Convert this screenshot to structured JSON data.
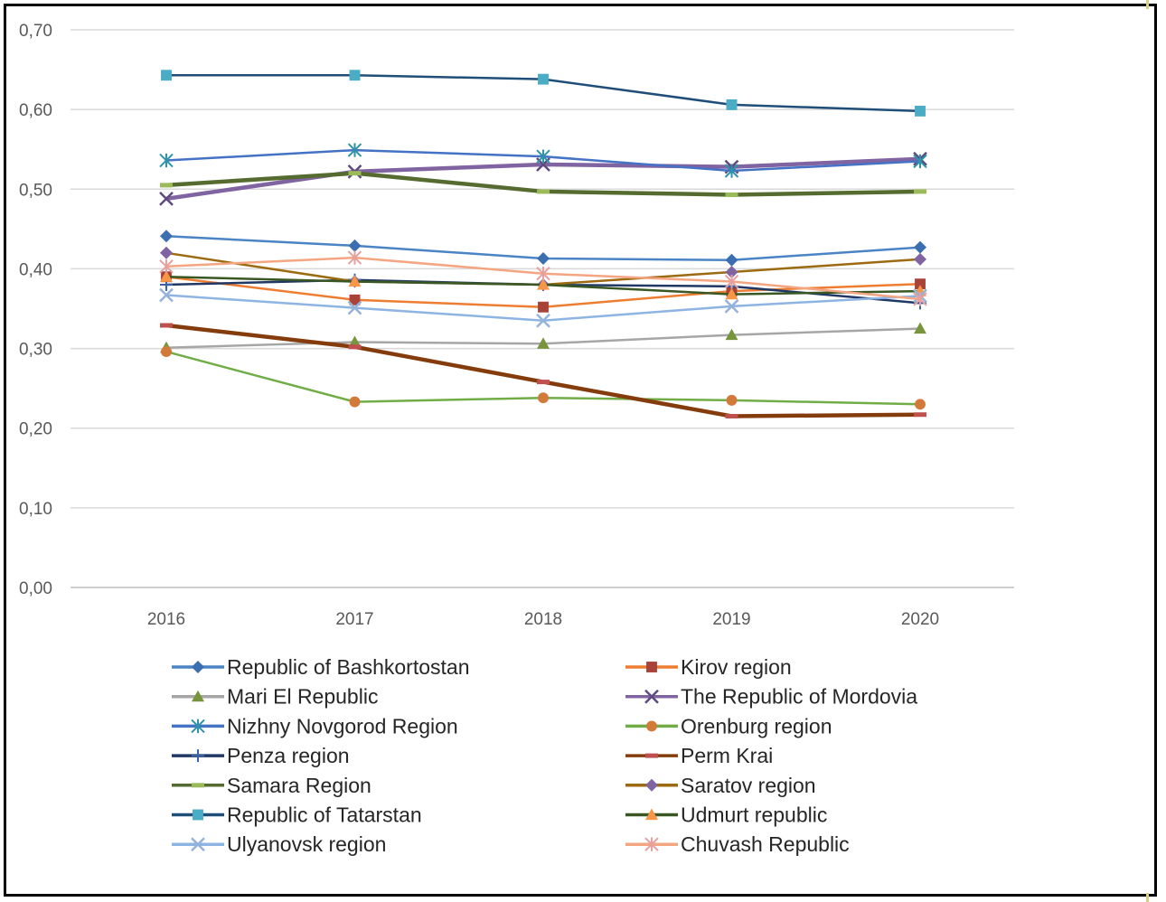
{
  "chart_data": {
    "type": "line",
    "title": "",
    "xlabel": "",
    "ylabel": "",
    "x": [
      "2016",
      "2017",
      "2018",
      "2019",
      "2020"
    ],
    "ylim": [
      0,
      0.7
    ],
    "yticks": [
      "0,00",
      "0,10",
      "0,20",
      "0,30",
      "0,40",
      "0,50",
      "0,60",
      "0,70"
    ],
    "grid": true,
    "legend_position": "bottom",
    "series": [
      {
        "name": "Republic of Bashkortostan",
        "color": "#4a84c4",
        "marker": "diamond",
        "marker_color": "#3c6fb0",
        "values": [
          0.441,
          0.429,
          0.413,
          0.411,
          0.427
        ]
      },
      {
        "name": "Kirov region",
        "color": "#ed7d31",
        "marker": "square",
        "marker_color": "#a9433a",
        "values": [
          0.39,
          0.361,
          0.352,
          0.372,
          0.381
        ]
      },
      {
        "name": "Mari El Republic",
        "color": "#a6a6a6",
        "marker": "triangle",
        "marker_color": "#77953d",
        "values": [
          0.301,
          0.308,
          0.306,
          0.317,
          0.325
        ]
      },
      {
        "name": "The Republic of Mordovia",
        "color": "#8064a2",
        "marker": "x",
        "marker_color": "#5f4a80",
        "values": [
          0.488,
          0.522,
          0.531,
          0.528,
          0.538
        ]
      },
      {
        "name": "Nizhny Novgorod Region",
        "color": "#4472c4",
        "marker": "asterisk",
        "marker_color": "#2e93a8",
        "values": [
          0.536,
          0.549,
          0.541,
          0.523,
          0.535
        ]
      },
      {
        "name": "Orenburg region",
        "color": "#70ad47",
        "marker": "circle",
        "marker_color": "#d27a3a",
        "values": [
          0.296,
          0.233,
          0.238,
          0.235,
          0.23
        ]
      },
      {
        "name": "Penza region",
        "color": "#1f3864",
        "marker": "plus",
        "marker_color": "#3b64a8",
        "values": [
          0.38,
          0.386,
          0.38,
          0.378,
          0.357
        ]
      },
      {
        "name": "Perm Krai",
        "color": "#843c0c",
        "marker": "dash",
        "marker_color": "#c0504d",
        "values": [
          0.329,
          0.302,
          0.258,
          0.215,
          0.217
        ]
      },
      {
        "name": "Samara Region",
        "color": "#556b2f",
        "marker": "dash",
        "marker_color": "#9bbb59",
        "values": [
          0.505,
          0.52,
          0.497,
          0.493,
          0.497
        ]
      },
      {
        "name": "Saratov region",
        "color": "#9c6b11",
        "marker": "diamond",
        "marker_color": "#8064a2",
        "values": [
          0.42,
          0.384,
          0.38,
          0.396,
          0.412
        ]
      },
      {
        "name": "Republic of Tatarstan",
        "color": "#1f4e79",
        "marker": "square",
        "marker_color": "#4bacc6",
        "values": [
          0.643,
          0.643,
          0.638,
          0.606,
          0.598
        ]
      },
      {
        "name": "Udmurt republic",
        "color": "#385723",
        "marker": "triangle",
        "marker_color": "#f79646",
        "values": [
          0.39,
          0.384,
          0.38,
          0.368,
          0.372
        ]
      },
      {
        "name": "Ulyanovsk region",
        "color": "#8db4e2",
        "marker": "x",
        "marker_color": "#95b3d7",
        "values": [
          0.367,
          0.351,
          0.335,
          0.353,
          0.366
        ]
      },
      {
        "name": "Chuvash Republic",
        "color": "#f4a582",
        "marker": "asterisk",
        "marker_color": "#e6a0a0",
        "values": [
          0.403,
          0.414,
          0.394,
          0.384,
          0.362
        ]
      }
    ]
  }
}
